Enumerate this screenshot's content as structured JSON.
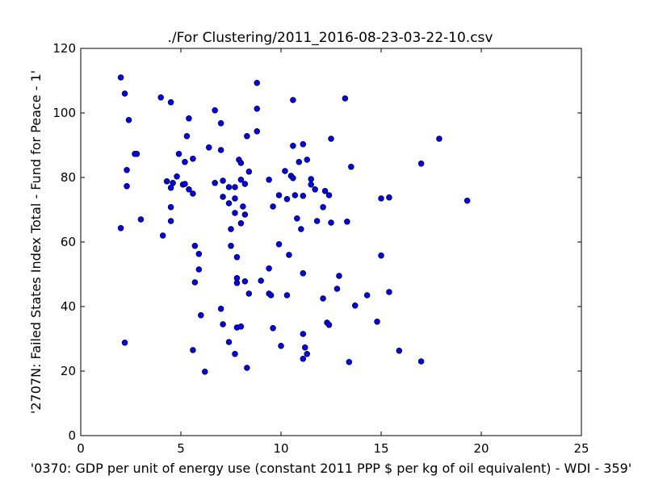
{
  "chart_data": {
    "type": "scatter",
    "title": "./For Clustering/2011_2016-08-23-03-22-10.csv",
    "xlabel": "'0370: GDP per unit of energy use  (constant 2011 PPP $ per kg of oil equivalent) - WDI - 359'",
    "ylabel": "'2707N: Failed States Index Total - Fund for Peace - 1'",
    "xlim": [
      0,
      25
    ],
    "ylim": [
      0,
      120
    ],
    "xticks": [
      0,
      5,
      10,
      15,
      20,
      25
    ],
    "yticks": [
      0,
      20,
      40,
      60,
      80,
      100,
      120
    ],
    "grid": false,
    "marker_color": "#0000ff",
    "points": [
      [
        2.0,
        111.0
      ],
      [
        2.2,
        106.0
      ],
      [
        2.4,
        97.8
      ],
      [
        2.7,
        87.3
      ],
      [
        2.8,
        87.3
      ],
      [
        2.3,
        82.3
      ],
      [
        2.3,
        77.3
      ],
      [
        2.0,
        64.3
      ],
      [
        3.0,
        67.0
      ],
      [
        2.2,
        28.8
      ],
      [
        4.0,
        104.8
      ],
      [
        4.5,
        103.3
      ],
      [
        5.4,
        98.3
      ],
      [
        4.9,
        87.3
      ],
      [
        5.3,
        92.8
      ],
      [
        5.6,
        85.8
      ],
      [
        5.2,
        84.8
      ],
      [
        4.8,
        80.3
      ],
      [
        4.3,
        78.8
      ],
      [
        4.6,
        78.3
      ],
      [
        4.5,
        76.8
      ],
      [
        5.1,
        77.8
      ],
      [
        5.2,
        78.0
      ],
      [
        5.4,
        76.3
      ],
      [
        5.6,
        75.0
      ],
      [
        4.5,
        70.8
      ],
      [
        4.5,
        66.5
      ],
      [
        4.1,
        62.0
      ],
      [
        5.7,
        58.8
      ],
      [
        5.9,
        56.3
      ],
      [
        5.9,
        51.5
      ],
      [
        5.7,
        47.5
      ],
      [
        6.0,
        37.3
      ],
      [
        5.6,
        26.5
      ],
      [
        6.2,
        19.8
      ],
      [
        6.7,
        100.8
      ],
      [
        7.0,
        96.8
      ],
      [
        6.4,
        89.3
      ],
      [
        7.0,
        88.5
      ],
      [
        6.7,
        78.3
      ],
      [
        7.1,
        79.0
      ],
      [
        7.4,
        77.0
      ],
      [
        7.1,
        74.0
      ],
      [
        7.7,
        73.5
      ],
      [
        7.4,
        72.0
      ],
      [
        7.7,
        77.0
      ],
      [
        7.5,
        64.0
      ],
      [
        7.7,
        69.0
      ],
      [
        7.5,
        58.8
      ],
      [
        7.8,
        55.3
      ],
      [
        7.8,
        48.8
      ],
      [
        7.8,
        47.3
      ],
      [
        7.0,
        39.3
      ],
      [
        7.1,
        34.5
      ],
      [
        7.4,
        29.0
      ],
      [
        7.7,
        25.3
      ],
      [
        7.8,
        33.5
      ],
      [
        8.0,
        33.8
      ],
      [
        7.9,
        85.5
      ],
      [
        8.0,
        84.5
      ],
      [
        8.3,
        92.8
      ],
      [
        8.4,
        81.8
      ],
      [
        8.0,
        79.3
      ],
      [
        8.2,
        78.0
      ],
      [
        8.2,
        68.5
      ],
      [
        8.0,
        65.8
      ],
      [
        8.1,
        71.0
      ],
      [
        8.2,
        47.8
      ],
      [
        8.4,
        44.0
      ],
      [
        8.3,
        21.0
      ],
      [
        8.8,
        109.3
      ],
      [
        8.8,
        101.3
      ],
      [
        8.8,
        94.3
      ],
      [
        9.0,
        48.0
      ],
      [
        9.4,
        79.3
      ],
      [
        9.6,
        71.0
      ],
      [
        9.9,
        74.5
      ],
      [
        9.9,
        59.3
      ],
      [
        9.4,
        51.8
      ],
      [
        9.4,
        44.0
      ],
      [
        9.5,
        43.5
      ],
      [
        9.6,
        33.3
      ],
      [
        10.0,
        27.8
      ],
      [
        10.6,
        104.0
      ],
      [
        10.6,
        89.8
      ],
      [
        10.2,
        82.0
      ],
      [
        10.5,
        80.5
      ],
      [
        10.6,
        79.8
      ],
      [
        10.3,
        73.3
      ],
      [
        10.7,
        74.5
      ],
      [
        10.8,
        67.3
      ],
      [
        10.4,
        56.0
      ],
      [
        10.3,
        43.5
      ],
      [
        10.9,
        84.8
      ],
      [
        11.0,
        64.0
      ],
      [
        11.1,
        74.3
      ],
      [
        11.1,
        90.3
      ],
      [
        11.3,
        85.5
      ],
      [
        11.5,
        79.5
      ],
      [
        11.5,
        77.8
      ],
      [
        11.7,
        76.3
      ],
      [
        11.8,
        66.5
      ],
      [
        11.1,
        50.3
      ],
      [
        11.1,
        31.5
      ],
      [
        11.2,
        27.3
      ],
      [
        11.3,
        25.3
      ],
      [
        11.1,
        23.8
      ],
      [
        12.2,
        75.8
      ],
      [
        12.4,
        74.5
      ],
      [
        12.1,
        70.8
      ],
      [
        12.5,
        66.0
      ],
      [
        12.5,
        92.0
      ],
      [
        12.1,
        42.5
      ],
      [
        12.3,
        35.0
      ],
      [
        12.4,
        34.3
      ],
      [
        12.8,
        45.5
      ],
      [
        12.9,
        49.5
      ],
      [
        13.2,
        104.5
      ],
      [
        13.5,
        83.3
      ],
      [
        13.3,
        66.3
      ],
      [
        13.7,
        40.3
      ],
      [
        13.4,
        22.8
      ],
      [
        14.3,
        43.5
      ],
      [
        14.8,
        35.3
      ],
      [
        15.0,
        73.5
      ],
      [
        15.4,
        73.8
      ],
      [
        15.0,
        55.8
      ],
      [
        15.4,
        44.5
      ],
      [
        15.9,
        26.3
      ],
      [
        17.0,
        84.3
      ],
      [
        17.0,
        23.0
      ],
      [
        17.9,
        92.0
      ],
      [
        19.3,
        72.8
      ]
    ]
  }
}
